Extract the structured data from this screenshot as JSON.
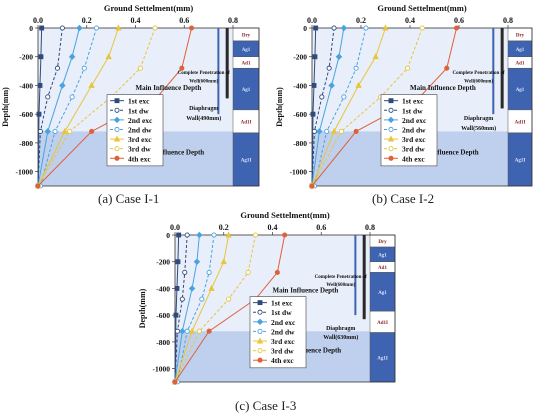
{
  "figure": {
    "captions": [
      "(a) Case I-1",
      "(b) Case I-2",
      "(c) Case I-3"
    ],
    "stratum_labels": [
      "Dry",
      "Ag1",
      "Ad1",
      "Ag1",
      "Ad1I",
      "Ag1I"
    ],
    "colors": {
      "exc1": "#2f4b7c",
      "exc2": "#4aa3df",
      "exc3": "#e8c53a",
      "exc4": "#e0603a",
      "main_zone": "#e8eefa",
      "minor_zone": "#bfd0ee",
      "strata_dark": "#3e63b0",
      "strata_light": "#ffffff",
      "wall": "#2a2a2a",
      "well": "#3e63b0"
    }
  },
  "chart_data": [
    {
      "type": "line",
      "title": "Ground Settelment(mm)",
      "xlabel": "",
      "ylabel": "Depth(mm)",
      "xlim": [
        0,
        0.8
      ],
      "ylim": [
        -1100,
        0
      ],
      "x_ticks": [
        "0.0",
        "0.2",
        "0.4",
        "0.6",
        "0.8"
      ],
      "y_ticks": [
        "0",
        "-200",
        "-400",
        "-600",
        "-800",
        "-1000"
      ],
      "legend": [
        "1st exc",
        "1st dw",
        "2nd exc",
        "2nd dw",
        "3rd exc",
        "3rd dw",
        "4th exc"
      ],
      "legend_position": "left",
      "annotations": [
        "Main Influence Depth",
        "Minor Influence Depth",
        "Complete Penetration of Well(600mm)",
        "Diaphragm Wall(490mm)"
      ],
      "minor_depth": -720,
      "wall_depth": -490,
      "well_depth": -600,
      "series": [
        {
          "name": "1st exc",
          "dashed": false,
          "marker": "square",
          "x": [
            0.015,
            0.012,
            0.008,
            0.004,
            0.001
          ],
          "y": [
            0,
            -200,
            -400,
            -600,
            -1100
          ]
        },
        {
          "name": "1st dw",
          "dashed": true,
          "marker": "circle",
          "x": [
            0.1,
            0.08,
            0.04,
            0.01,
            0.0
          ],
          "y": [
            0,
            -280,
            -480,
            -720,
            -1100
          ]
        },
        {
          "name": "2nd exc",
          "dashed": false,
          "marker": "diamond",
          "x": [
            0.17,
            0.14,
            0.1,
            0.04,
            0.0
          ],
          "y": [
            0,
            -200,
            -400,
            -720,
            -1100
          ]
        },
        {
          "name": "2nd dw",
          "dashed": true,
          "marker": "circle",
          "x": [
            0.24,
            0.19,
            0.14,
            0.07,
            0.01
          ],
          "y": [
            0,
            -280,
            -480,
            -720,
            -1100
          ]
        },
        {
          "name": "3rd exc",
          "dashed": false,
          "marker": "triangle",
          "x": [
            0.33,
            0.29,
            0.22,
            0.11,
            0.0
          ],
          "y": [
            0,
            -200,
            -400,
            -720,
            -1100
          ]
        },
        {
          "name": "3rd dw",
          "dashed": true,
          "marker": "circle",
          "x": [
            0.48,
            0.42,
            0.3,
            0.13,
            0.0
          ],
          "y": [
            0,
            -280,
            -480,
            -720,
            -1100
          ]
        },
        {
          "name": "4th exc",
          "dashed": false,
          "marker": "circle",
          "x": [
            0.63,
            0.59,
            0.49,
            0.22,
            0.0
          ],
          "y": [
            0,
            -280,
            -480,
            -720,
            -1100
          ]
        }
      ]
    },
    {
      "type": "line",
      "title": "Ground Settelment(mm)",
      "xlabel": "",
      "ylabel": "Depth(mm)",
      "xlim": [
        0,
        0.8
      ],
      "ylim": [
        -1100,
        0
      ],
      "x_ticks": [
        "0.0",
        "0.2",
        "0.4",
        "0.6",
        "0.8"
      ],
      "y_ticks": [
        "0",
        "-200",
        "-400",
        "-600",
        "-800",
        "-1000"
      ],
      "legend": [
        "1st exc",
        "1st dw",
        "2nd exc",
        "2nd dw",
        "3rd exc",
        "3rd dw",
        "4th exc"
      ],
      "legend_position": "left",
      "annotations": [
        "Main Influence Depth",
        "Minor Influence Depth",
        "Complete Penetration of Well(600mm)",
        "Diaphragm Wall(560mm)"
      ],
      "minor_depth": -720,
      "wall_depth": -560,
      "well_depth": -600,
      "series": [
        {
          "name": "1st exc",
          "dashed": false,
          "marker": "square",
          "x": [
            0.015,
            0.012,
            0.008,
            0.004,
            0.001
          ],
          "y": [
            0,
            -200,
            -400,
            -600,
            -1100
          ]
        },
        {
          "name": "1st dw",
          "dashed": true,
          "marker": "circle",
          "x": [
            0.09,
            0.07,
            0.04,
            0.01,
            0.0
          ],
          "y": [
            0,
            -280,
            -480,
            -720,
            -1100
          ]
        },
        {
          "name": "2nd exc",
          "dashed": false,
          "marker": "diamond",
          "x": [
            0.13,
            0.11,
            0.08,
            0.03,
            0.0
          ],
          "y": [
            0,
            -200,
            -400,
            -720,
            -1100
          ]
        },
        {
          "name": "2nd dw",
          "dashed": true,
          "marker": "circle",
          "x": [
            0.22,
            0.18,
            0.13,
            0.06,
            0.01
          ],
          "y": [
            0,
            -280,
            -480,
            -720,
            -1100
          ]
        },
        {
          "name": "3rd exc",
          "dashed": false,
          "marker": "triangle",
          "x": [
            0.3,
            0.26,
            0.19,
            0.09,
            0.0
          ],
          "y": [
            0,
            -200,
            -400,
            -720,
            -1100
          ]
        },
        {
          "name": "3rd dw",
          "dashed": true,
          "marker": "circle",
          "x": [
            0.45,
            0.39,
            0.28,
            0.12,
            0.0
          ],
          "y": [
            0,
            -280,
            -480,
            -720,
            -1100
          ]
        },
        {
          "name": "4th exc",
          "dashed": false,
          "marker": "circle",
          "x": [
            0.59,
            0.55,
            0.44,
            0.18,
            0.0
          ],
          "y": [
            0,
            -280,
            -480,
            -720,
            -1100
          ]
        }
      ]
    },
    {
      "type": "line",
      "title": "Ground Settelment(mm)",
      "xlabel": "",
      "ylabel": "Depth(mm)",
      "xlim": [
        0,
        0.8
      ],
      "ylim": [
        -1100,
        0
      ],
      "x_ticks": [
        "0.0",
        "0.2",
        "0.4",
        "0.6",
        "0.8"
      ],
      "y_ticks": [
        "0",
        "-200",
        "-400",
        "-600",
        "-800",
        "-1000"
      ],
      "legend": [
        "1st exc",
        "1st dw",
        "2nd exc",
        "2nd dw",
        "3rd exc",
        "3rd dw",
        "4th exc"
      ],
      "legend_position": "left",
      "annotations": [
        "Main Influence Depth",
        "Minor Influence Depth",
        "Complete Penetration of Well(600mm)",
        "Diaphragm Wall(630mm)"
      ],
      "minor_depth": -720,
      "wall_depth": -630,
      "well_depth": -600,
      "series": [
        {
          "name": "1st exc",
          "dashed": false,
          "marker": "square",
          "x": [
            0.015,
            0.012,
            0.008,
            0.004,
            0.001
          ],
          "y": [
            0,
            -200,
            -400,
            -600,
            -1100
          ]
        },
        {
          "name": "1st dw",
          "dashed": true,
          "marker": "circle",
          "x": [
            0.05,
            0.04,
            0.03,
            0.01,
            0.0
          ],
          "y": [
            0,
            -280,
            -480,
            -720,
            -1100
          ]
        },
        {
          "name": "2nd exc",
          "dashed": false,
          "marker": "diamond",
          "x": [
            0.1,
            0.09,
            0.07,
            0.03,
            0.0
          ],
          "y": [
            0,
            -200,
            -400,
            -720,
            -1100
          ]
        },
        {
          "name": "2nd dw",
          "dashed": true,
          "marker": "circle",
          "x": [
            0.16,
            0.14,
            0.11,
            0.05,
            0.01
          ],
          "y": [
            0,
            -280,
            -480,
            -720,
            -1100
          ]
        },
        {
          "name": "3rd exc",
          "dashed": false,
          "marker": "triangle",
          "x": [
            0.22,
            0.2,
            0.15,
            0.07,
            0.0
          ],
          "y": [
            0,
            -200,
            -400,
            -720,
            -1100
          ]
        },
        {
          "name": "3rd dw",
          "dashed": true,
          "marker": "circle",
          "x": [
            0.33,
            0.3,
            0.22,
            0.1,
            0.0
          ],
          "y": [
            0,
            -280,
            -480,
            -720,
            -1100
          ]
        },
        {
          "name": "4th exc",
          "dashed": false,
          "marker": "circle",
          "x": [
            0.45,
            0.42,
            0.33,
            0.14,
            0.0
          ],
          "y": [
            0,
            -280,
            -480,
            -720,
            -1100
          ]
        }
      ]
    }
  ]
}
